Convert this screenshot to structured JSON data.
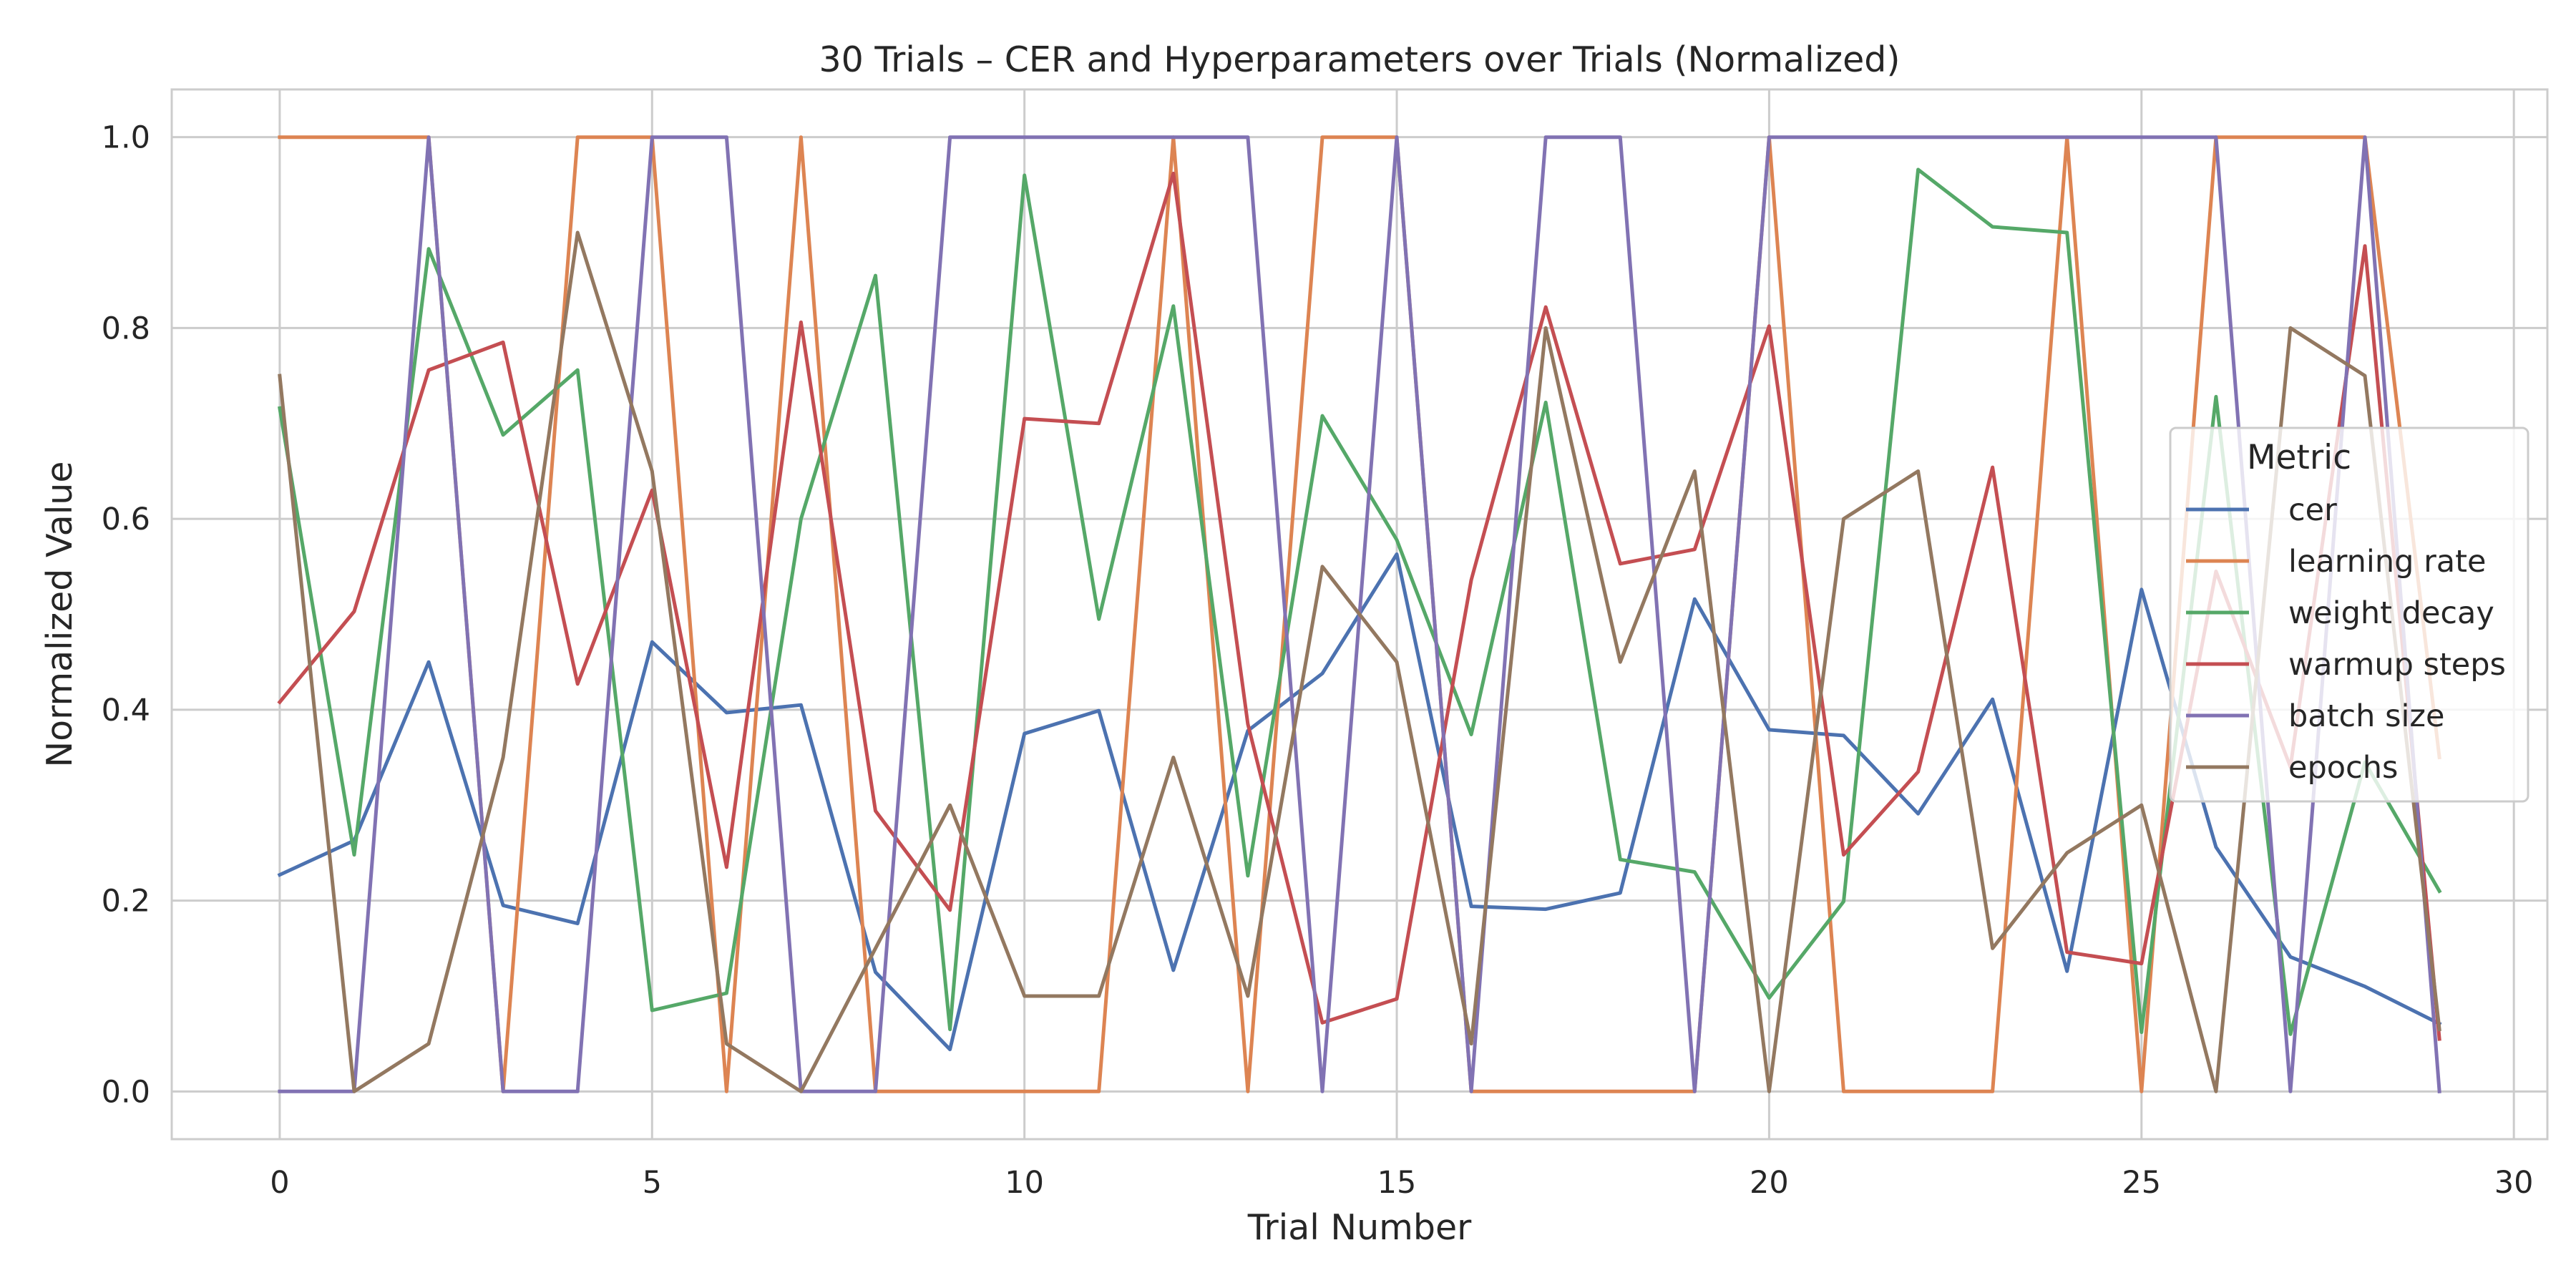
{
  "chart_data": {
    "type": "line",
    "title": "30 Trials – CER and Hyperparameters over Trials (Normalized)",
    "xlabel": "Trial Number",
    "ylabel": "Normalized Value",
    "xlim": [
      -1.45,
      30.45
    ],
    "ylim": [
      -0.05,
      1.05
    ],
    "xticks": [
      0,
      5,
      10,
      15,
      20,
      25,
      30
    ],
    "xtick_labels": [
      "0",
      "5",
      "10",
      "15",
      "20",
      "25",
      "30"
    ],
    "yticks": [
      0.0,
      0.2,
      0.4,
      0.6,
      0.8,
      1.0
    ],
    "ytick_labels": [
      "0.0",
      "0.2",
      "0.4",
      "0.6",
      "0.8",
      "1.0"
    ],
    "grid": true,
    "legend": {
      "title": "Metric",
      "placement": "center-right"
    },
    "x": [
      0,
      1,
      2,
      3,
      4,
      5,
      6,
      7,
      8,
      9,
      10,
      11,
      12,
      13,
      14,
      15,
      16,
      17,
      18,
      19,
      20,
      21,
      22,
      23,
      24,
      25,
      26,
      27,
      28,
      29
    ],
    "series": [
      {
        "name": "cer",
        "color": "#4c72b0",
        "values": [
          0.227,
          0.263,
          0.45,
          0.195,
          0.176,
          0.471,
          0.397,
          0.405,
          0.125,
          0.044,
          0.375,
          0.399,
          0.127,
          0.378,
          0.438,
          0.563,
          0.194,
          0.191,
          0.208,
          0.516,
          0.379,
          0.373,
          0.291,
          0.411,
          0.126,
          0.526,
          0.256,
          0.141,
          0.11,
          0.071
        ]
      },
      {
        "name": "learning rate",
        "color": "#dd8452",
        "values": [
          1.0,
          1.0,
          1.0,
          0.0,
          1.0,
          1.0,
          0.0,
          1.0,
          0.0,
          0.0,
          0.0,
          0.0,
          1.0,
          0.0,
          1.0,
          1.0,
          0.0,
          0.0,
          0.0,
          0.0,
          1.0,
          0.0,
          0.0,
          0.0,
          1.0,
          0.0,
          1.0,
          1.0,
          1.0,
          0.35
        ]
      },
      {
        "name": "weight decay",
        "color": "#55a868",
        "values": [
          0.716,
          0.248,
          0.883,
          0.688,
          0.756,
          0.085,
          0.103,
          0.6,
          0.855,
          0.065,
          0.96,
          0.495,
          0.823,
          0.226,
          0.708,
          0.578,
          0.374,
          0.722,
          0.243,
          0.23,
          0.098,
          0.199,
          0.966,
          0.906,
          0.9,
          0.062,
          0.728,
          0.06,
          0.345,
          0.21
        ]
      },
      {
        "name": "warmup steps",
        "color": "#c44e52",
        "values": [
          0.408,
          0.503,
          0.756,
          0.785,
          0.427,
          0.63,
          0.235,
          0.806,
          0.294,
          0.19,
          0.705,
          0.7,
          0.962,
          0.385,
          0.072,
          0.097,
          0.536,
          0.822,
          0.553,
          0.568,
          0.802,
          0.248,
          0.335,
          0.654,
          0.146,
          0.134,
          0.545,
          0.34,
          0.886,
          0.055
        ]
      },
      {
        "name": "batch size",
        "color": "#8172b3",
        "values": [
          0.0,
          0.0,
          1.0,
          0.0,
          0.0,
          1.0,
          1.0,
          0.0,
          0.0,
          1.0,
          1.0,
          1.0,
          1.0,
          1.0,
          0.0,
          1.0,
          0.0,
          1.0,
          1.0,
          0.0,
          1.0,
          1.0,
          1.0,
          1.0,
          1.0,
          1.0,
          1.0,
          0.0,
          1.0,
          0.0
        ]
      },
      {
        "name": "epochs",
        "color": "#937860",
        "values": [
          0.75,
          0.0,
          0.05,
          0.35,
          0.9,
          0.65,
          0.05,
          0.0,
          0.15,
          0.3,
          0.1,
          0.1,
          0.35,
          0.1,
          0.55,
          0.45,
          0.05,
          0.8,
          0.45,
          0.65,
          0.0,
          0.6,
          0.65,
          0.15,
          0.25,
          0.3,
          0.0,
          0.8,
          0.75,
          0.065
        ]
      }
    ]
  }
}
